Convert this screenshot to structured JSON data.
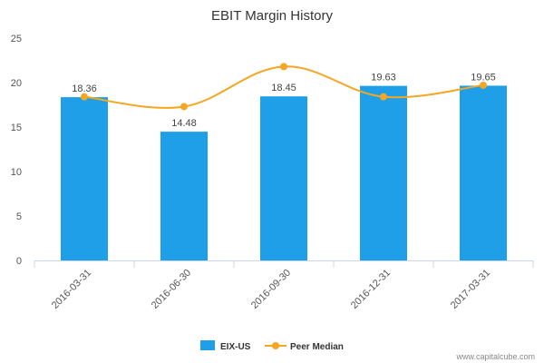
{
  "chart_data": {
    "type": "bar",
    "title": "EBIT Margin History",
    "categories": [
      "2016-03-31",
      "2016-06-30",
      "2016-09-30",
      "2016-12-31",
      "2017-03-31"
    ],
    "series": [
      {
        "name": "EIX-US",
        "type": "bar",
        "values": [
          18.36,
          14.48,
          18.45,
          19.63,
          19.65
        ],
        "labels": [
          "18.36",
          "14.48",
          "18.45",
          "19.63",
          "19.65"
        ],
        "color": "#1f9fe8"
      },
      {
        "name": "Peer Median",
        "type": "line",
        "values": [
          18.4,
          17.3,
          21.8,
          18.4,
          19.7
        ],
        "color": "#f5a623"
      }
    ],
    "ylim": [
      0,
      25
    ],
    "yticks": [
      "0",
      "5",
      "10",
      "15",
      "20",
      "25"
    ],
    "grid": false,
    "legend": "bottom-center"
  },
  "credit": "www.capitalcube.com",
  "colors": {
    "bar": "#1f9fe8",
    "line": "#f5a623",
    "axis": "#ccd6eb"
  }
}
